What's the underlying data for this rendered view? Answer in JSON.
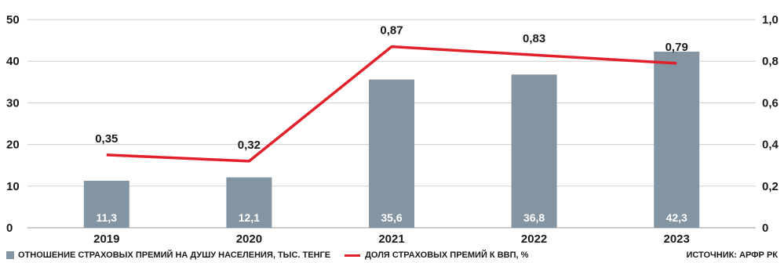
{
  "chart_data": {
    "type": "bar",
    "categories": [
      "2019",
      "2020",
      "2021",
      "2022",
      "2023"
    ],
    "series": [
      {
        "name": "ОТНОШЕНИЕ СТРАХОВЫХ ПРЕМИЙ НА ДУШУ НАСЕЛЕНИЯ, ТЫС. ТЕНГЕ",
        "type": "bar",
        "axis": "left",
        "values": [
          11.3,
          12.1,
          35.6,
          36.8,
          42.3
        ],
        "labels": [
          "11,3",
          "12,1",
          "35,6",
          "36,8",
          "42,3"
        ],
        "color": "#8395a3"
      },
      {
        "name": "ДОЛЯ СТРАХОВЫХ ПРЕМИЙ К ВВП, %",
        "type": "line",
        "axis": "right",
        "values": [
          0.35,
          0.32,
          0.87,
          0.83,
          0.79
        ],
        "labels": [
          "0,35",
          "0,32",
          "0,87",
          "0,83",
          "0,79"
        ],
        "color": "#e0202a"
      }
    ],
    "ylim": [
      0,
      50
    ],
    "yticks": [
      "0",
      "10",
      "20",
      "30",
      "40",
      "50"
    ],
    "y2lim": [
      0,
      1.0
    ],
    "y2ticks": [
      "0",
      "0,2",
      "0,4",
      "0,6",
      "0,8",
      "1,0"
    ],
    "grid": "horizontal",
    "legend_position": "bottom-left",
    "source": "ИСТОЧНИК: АРФР РК"
  }
}
